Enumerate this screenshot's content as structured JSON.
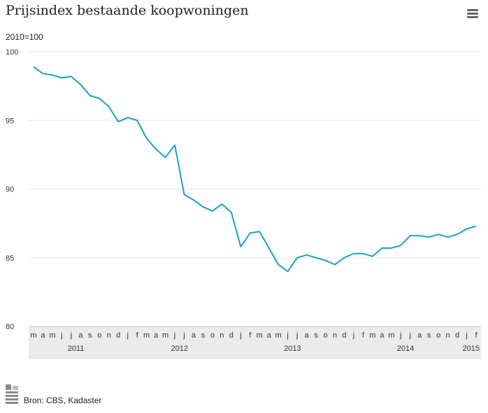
{
  "header": {
    "title": "Prijsindex bestaande koopwoningen",
    "unit": "2010=100"
  },
  "footer": {
    "source": "Bron: CBS, Kadaster"
  },
  "chart_data": {
    "type": "line",
    "title": "Prijsindex bestaande koopwoningen",
    "ylabel": "2010=100",
    "ylim": [
      80,
      100
    ],
    "yticks": [
      80,
      85,
      90,
      95,
      100
    ],
    "grid": true,
    "line_color": "#1aa1c7",
    "x": [
      "m",
      "a",
      "m",
      "j",
      "j",
      "a",
      "s",
      "o",
      "n",
      "d",
      "j",
      "f",
      "m",
      "a",
      "m",
      "j",
      "j",
      "a",
      "s",
      "o",
      "n",
      "d",
      "j",
      "f",
      "m",
      "a",
      "m",
      "j",
      "j",
      "a",
      "s",
      "o",
      "n",
      "d",
      "j",
      "f",
      "m",
      "a",
      "m",
      "j",
      "j",
      "a",
      "s",
      "o",
      "n",
      "d",
      "j",
      "f"
    ],
    "years": [
      {
        "label": "2011",
        "start_index": 0
      },
      {
        "label": "2012",
        "start_index": 10
      },
      {
        "label": "2013",
        "start_index": 22
      },
      {
        "label": "2014",
        "start_index": 34
      },
      {
        "label": "2015",
        "start_index": 46
      }
    ],
    "series": [
      {
        "values": [
          98.9,
          98.4,
          98.3,
          98.1,
          98.2,
          97.6,
          96.8,
          96.6,
          96.0,
          94.9,
          95.2,
          95.0,
          93.7,
          92.9,
          92.3,
          93.2,
          89.6,
          89.2,
          88.7,
          88.4,
          88.9,
          88.3,
          85.8,
          86.8,
          86.9,
          85.7,
          84.5,
          84.0,
          85.0,
          85.2,
          85.0,
          84.8,
          84.5,
          85.0,
          85.3,
          85.3,
          85.1,
          85.7,
          85.7,
          85.9,
          86.6,
          86.6,
          86.5,
          86.7,
          86.5,
          86.7,
          87.1,
          87.3
        ]
      }
    ]
  }
}
